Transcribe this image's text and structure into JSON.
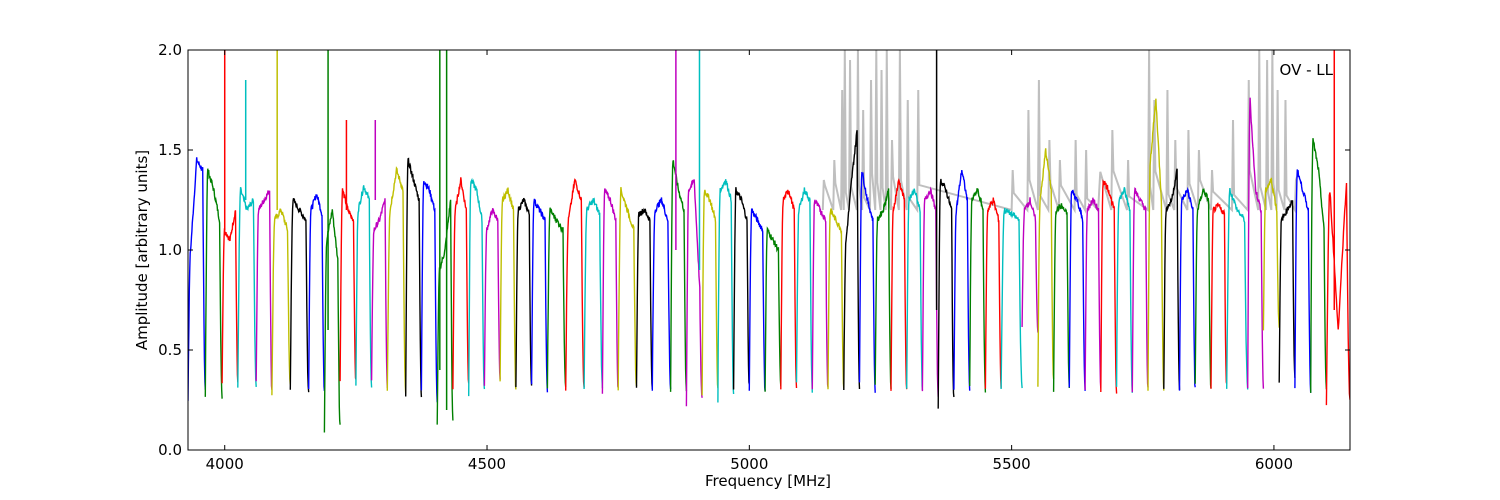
{
  "chart_data": {
    "type": "line",
    "annotation": "OV - LL",
    "xlabel": "Frequency [MHz]",
    "ylabel": "Amplitude [arbitrary units]",
    "xlim": [
      3930,
      6145
    ],
    "ylim": [
      0.0,
      2.0
    ],
    "xticks": [
      4000,
      4500,
      5000,
      5500,
      6000
    ],
    "xtick_labels": [
      "4000",
      "4500",
      "5000",
      "5500",
      "6000"
    ],
    "yticks": [
      0.0,
      0.5,
      1.0,
      1.5,
      2.0
    ],
    "ytick_labels": [
      "0.0",
      "0.5",
      "1.0",
      "1.5",
      "2.0"
    ],
    "grid": false,
    "legend": "none",
    "background_series": {
      "name": "",
      "color": "#bfbfbf",
      "x": [
        5140,
        5160,
        5175,
        5180,
        5190,
        5205,
        5215,
        5230,
        5240,
        5250,
        5260,
        5270,
        5285,
        5300,
        5320,
        5500,
        5530,
        5550,
        5570,
        5590,
        5620,
        5640,
        5665,
        5690,
        5720,
        5760,
        5770,
        5795,
        5810,
        5835,
        5855,
        5880,
        5920,
        5950,
        5970,
        5985,
        5995,
        6005,
        6020,
        6040
      ],
      "y": [
        1.35,
        1.45,
        1.8,
        2.0,
        1.95,
        2.0,
        1.7,
        1.85,
        2.0,
        1.9,
        2.0,
        1.55,
        2.0,
        1.75,
        1.8,
        1.4,
        1.7,
        1.85,
        1.55,
        1.45,
        1.55,
        1.5,
        1.3,
        1.6,
        1.45,
        2.0,
        1.75,
        1.8,
        1.55,
        1.6,
        1.5,
        1.4,
        1.65,
        1.85,
        2.0,
        1.95,
        2.0,
        1.8,
        1.75,
        1.35
      ]
    },
    "palette": [
      "#0000ff",
      "#008000",
      "#ff0000",
      "#00bfbf",
      "#bf00bf",
      "#bfbf00",
      "#000000"
    ],
    "segments": [
      {
        "x0": 3930,
        "x1": 3963,
        "color": "#0000ff",
        "top": [
          0.25,
          1.0,
          1.45,
          1.4,
          0.3
        ]
      },
      {
        "x0": 3963,
        "x1": 3995,
        "color": "#008000",
        "top": [
          0.28,
          1.4,
          1.3,
          1.15,
          0.27
        ]
      },
      {
        "x0": 3995,
        "x1": 4025,
        "color": "#ff0000",
        "top": [
          0.34,
          1.1,
          1.05,
          1.2,
          0.35
        ]
      },
      {
        "x0": 4025,
        "x1": 4060,
        "color": "#00bfbf",
        "top": [
          0.3,
          1.3,
          1.2,
          1.25,
          0.33
        ]
      },
      {
        "x0": 4060,
        "x1": 4090,
        "color": "#bf00bf",
        "top": [
          0.33,
          1.2,
          1.25,
          1.3,
          0.3
        ]
      },
      {
        "x0": 4090,
        "x1": 4125,
        "color": "#bfbf00",
        "top": [
          0.28,
          1.15,
          1.2,
          1.1,
          0.32
        ]
      },
      {
        "x0": 4125,
        "x1": 4160,
        "color": "#000000",
        "top": [
          0.3,
          1.25,
          1.2,
          1.15,
          0.29
        ]
      },
      {
        "x0": 4160,
        "x1": 4190,
        "color": "#0000ff",
        "top": [
          0.32,
          1.2,
          1.28,
          1.18,
          0.3
        ]
      },
      {
        "x0": 4190,
        "x1": 4220,
        "color": "#008000",
        "top": [
          0.1,
          1.05,
          1.2,
          0.95,
          0.12
        ]
      },
      {
        "x0": 4220,
        "x1": 4250,
        "color": "#ff0000",
        "top": [
          0.35,
          1.3,
          1.2,
          1.15,
          0.34
        ]
      },
      {
        "x0": 4250,
        "x1": 4280,
        "color": "#00bfbf",
        "top": [
          0.33,
          1.2,
          1.32,
          1.25,
          0.31
        ]
      },
      {
        "x0": 4280,
        "x1": 4310,
        "color": "#bf00bf",
        "top": [
          0.34,
          1.1,
          1.15,
          1.25,
          0.32
        ]
      },
      {
        "x0": 4310,
        "x1": 4345,
        "color": "#bfbf00",
        "top": [
          0.3,
          1.2,
          1.4,
          1.3,
          0.28
        ]
      },
      {
        "x0": 4345,
        "x1": 4375,
        "color": "#000000",
        "top": [
          0.26,
          1.45,
          1.35,
          1.25,
          0.27
        ]
      },
      {
        "x0": 4375,
        "x1": 4405,
        "color": "#0000ff",
        "top": [
          0.3,
          1.35,
          1.3,
          1.2,
          0.25
        ]
      },
      {
        "x0": 4405,
        "x1": 4435,
        "color": "#008000",
        "top": [
          0.12,
          0.9,
          1.0,
          1.25,
          0.15
        ]
      },
      {
        "x0": 4435,
        "x1": 4465,
        "color": "#ff0000",
        "top": [
          0.3,
          1.2,
          1.35,
          1.2,
          0.33
        ]
      },
      {
        "x0": 4465,
        "x1": 4495,
        "color": "#00bfbf",
        "top": [
          0.28,
          1.35,
          1.3,
          1.15,
          0.3
        ]
      },
      {
        "x0": 4495,
        "x1": 4525,
        "color": "#bf00bf",
        "top": [
          0.32,
          1.1,
          1.2,
          1.15,
          0.35
        ]
      },
      {
        "x0": 4525,
        "x1": 4555,
        "color": "#bfbf00",
        "top": [
          0.33,
          1.25,
          1.3,
          1.2,
          0.3
        ]
      },
      {
        "x0": 4555,
        "x1": 4585,
        "color": "#000000",
        "top": [
          0.3,
          1.2,
          1.25,
          1.18,
          0.31
        ]
      },
      {
        "x0": 4585,
        "x1": 4615,
        "color": "#0000ff",
        "top": [
          0.32,
          1.25,
          1.2,
          1.15,
          0.3
        ]
      },
      {
        "x0": 4615,
        "x1": 4650,
        "color": "#008000",
        "top": [
          0.3,
          1.2,
          1.15,
          1.1,
          0.32
        ]
      },
      {
        "x0": 4650,
        "x1": 4685,
        "color": "#ff0000",
        "top": [
          0.31,
          1.15,
          1.35,
          1.25,
          0.3
        ]
      },
      {
        "x0": 4685,
        "x1": 4720,
        "color": "#00bfbf",
        "top": [
          0.3,
          1.2,
          1.25,
          1.18,
          0.32
        ]
      },
      {
        "x0": 4720,
        "x1": 4750,
        "color": "#bf00bf",
        "top": [
          0.29,
          1.3,
          1.25,
          1.15,
          0.3
        ]
      },
      {
        "x0": 4750,
        "x1": 4785,
        "color": "#bfbf00",
        "top": [
          0.3,
          1.3,
          1.2,
          1.1,
          0.31
        ]
      },
      {
        "x0": 4785,
        "x1": 4815,
        "color": "#000000",
        "top": [
          0.32,
          1.18,
          1.2,
          1.15,
          0.3
        ]
      },
      {
        "x0": 4815,
        "x1": 4850,
        "color": "#0000ff",
        "top": [
          0.3,
          1.2,
          1.25,
          1.15,
          0.31
        ]
      },
      {
        "x0": 4850,
        "x1": 4880,
        "color": "#008000",
        "top": [
          0.3,
          1.45,
          1.3,
          1.2,
          0.29
        ]
      },
      {
        "x0": 4880,
        "x1": 4910,
        "color": "#bf00bf",
        "top": [
          0.22,
          1.3,
          1.35,
          0.8,
          0.25
        ]
      },
      {
        "x0": 4910,
        "x1": 4940,
        "color": "#bfbf00",
        "top": [
          0.28,
          1.3,
          1.25,
          1.15,
          0.3
        ]
      },
      {
        "x0": 4940,
        "x1": 4970,
        "color": "#00bfbf",
        "top": [
          0.24,
          1.3,
          1.35,
          1.25,
          0.28
        ]
      },
      {
        "x0": 4970,
        "x1": 5000,
        "color": "#000000",
        "top": [
          0.3,
          1.3,
          1.25,
          1.15,
          0.32
        ]
      },
      {
        "x0": 5000,
        "x1": 5030,
        "color": "#0000ff",
        "top": [
          0.31,
          1.2,
          1.15,
          1.1,
          0.3
        ]
      },
      {
        "x0": 5030,
        "x1": 5060,
        "color": "#008000",
        "top": [
          0.3,
          1.1,
          1.05,
          1.0,
          0.32
        ]
      },
      {
        "x0": 5060,
        "x1": 5090,
        "color": "#ff0000",
        "top": [
          0.3,
          1.25,
          1.3,
          1.2,
          0.31
        ]
      },
      {
        "x0": 5090,
        "x1": 5120,
        "color": "#00bfbf",
        "top": [
          0.33,
          1.2,
          1.3,
          1.25,
          0.3
        ]
      },
      {
        "x0": 5120,
        "x1": 5150,
        "color": "#bf00bf",
        "top": [
          0.3,
          1.25,
          1.2,
          1.15,
          0.31
        ]
      },
      {
        "x0": 5150,
        "x1": 5180,
        "color": "#bfbf00",
        "top": [
          0.3,
          1.2,
          1.15,
          1.1,
          0.32
        ]
      },
      {
        "x0": 5180,
        "x1": 5210,
        "color": "#000000",
        "top": [
          0.3,
          1.05,
          1.35,
          1.6,
          0.32
        ]
      },
      {
        "x0": 5210,
        "x1": 5240,
        "color": "#0000ff",
        "top": [
          0.33,
          1.4,
          1.25,
          1.15,
          0.3
        ]
      },
      {
        "x0": 5240,
        "x1": 5270,
        "color": "#008000",
        "top": [
          0.32,
          1.15,
          1.2,
          1.3,
          0.3
        ]
      },
      {
        "x0": 5270,
        "x1": 5300,
        "color": "#ff0000",
        "top": [
          0.3,
          1.2,
          1.35,
          1.25,
          0.31
        ]
      },
      {
        "x0": 5300,
        "x1": 5330,
        "color": "#00bfbf",
        "top": [
          0.3,
          1.25,
          1.3,
          1.2,
          0.29
        ]
      },
      {
        "x0": 5330,
        "x1": 5360,
        "color": "#bf00bf",
        "top": [
          0.28,
          1.25,
          1.3,
          1.2,
          0.27
        ]
      },
      {
        "x0": 5360,
        "x1": 5390,
        "color": "#000000",
        "top": [
          0.21,
          1.35,
          1.3,
          1.2,
          0.25
        ]
      },
      {
        "x0": 5390,
        "x1": 5420,
        "color": "#0000ff",
        "top": [
          0.3,
          1.2,
          1.4,
          1.25,
          0.31
        ]
      },
      {
        "x0": 5420,
        "x1": 5450,
        "color": "#008000",
        "top": [
          0.32,
          1.25,
          1.3,
          1.2,
          0.3
        ]
      },
      {
        "x0": 5450,
        "x1": 5480,
        "color": "#ff0000",
        "top": [
          0.3,
          1.2,
          1.25,
          1.15,
          0.32
        ]
      },
      {
        "x0": 5480,
        "x1": 5520,
        "color": "#00bfbf",
        "top": [
          0.31,
          1.2,
          1.18,
          1.15,
          0.3
        ]
      },
      {
        "x0": 5520,
        "x1": 5550,
        "color": "#bf00bf",
        "top": [
          0.62,
          1.2,
          1.25,
          1.15,
          0.6
        ]
      },
      {
        "x0": 5550,
        "x1": 5580,
        "color": "#bfbf00",
        "top": [
          0.32,
          1.25,
          1.5,
          1.3,
          0.34
        ]
      },
      {
        "x0": 5580,
        "x1": 5610,
        "color": "#008000",
        "top": [
          0.3,
          1.2,
          1.22,
          1.18,
          0.32
        ]
      },
      {
        "x0": 5610,
        "x1": 5640,
        "color": "#0000ff",
        "top": [
          0.31,
          1.3,
          1.25,
          1.15,
          0.3
        ]
      },
      {
        "x0": 5640,
        "x1": 5670,
        "color": "#bf00bf",
        "top": [
          0.3,
          1.2,
          1.25,
          1.2,
          0.31
        ]
      },
      {
        "x0": 5670,
        "x1": 5700,
        "color": "#ff0000",
        "top": [
          0.3,
          1.35,
          1.3,
          1.2,
          0.29
        ]
      },
      {
        "x0": 5700,
        "x1": 5730,
        "color": "#00bfbf",
        "top": [
          0.32,
          1.25,
          1.3,
          1.2,
          0.3
        ]
      },
      {
        "x0": 5730,
        "x1": 5760,
        "color": "#bf00bf",
        "top": [
          0.3,
          1.3,
          1.25,
          1.2,
          0.31
        ]
      },
      {
        "x0": 5760,
        "x1": 5790,
        "color": "#bfbf00",
        "top": [
          0.3,
          1.45,
          1.75,
          1.25,
          0.31
        ]
      },
      {
        "x0": 5790,
        "x1": 5820,
        "color": "#000000",
        "top": [
          0.3,
          1.2,
          1.25,
          1.4,
          0.31
        ]
      },
      {
        "x0": 5820,
        "x1": 5850,
        "color": "#0000ff",
        "top": [
          0.3,
          1.25,
          1.3,
          1.2,
          0.31
        ]
      },
      {
        "x0": 5850,
        "x1": 5880,
        "color": "#008000",
        "top": [
          0.32,
          1.2,
          1.3,
          1.25,
          0.3
        ]
      },
      {
        "x0": 5880,
        "x1": 5910,
        "color": "#ff0000",
        "top": [
          0.3,
          1.2,
          1.22,
          1.18,
          0.32
        ]
      },
      {
        "x0": 5910,
        "x1": 5950,
        "color": "#00bfbf",
        "top": [
          0.31,
          1.3,
          1.2,
          1.15,
          0.3
        ]
      },
      {
        "x0": 5950,
        "x1": 5980,
        "color": "#bf00bf",
        "top": [
          0.3,
          1.75,
          1.3,
          1.2,
          0.31
        ]
      },
      {
        "x0": 5980,
        "x1": 6010,
        "color": "#bfbf00",
        "top": [
          0.6,
          1.3,
          1.35,
          1.2,
          0.62
        ]
      },
      {
        "x0": 6010,
        "x1": 6040,
        "color": "#000000",
        "top": [
          0.35,
          1.15,
          1.2,
          1.25,
          0.36
        ]
      },
      {
        "x0": 6040,
        "x1": 6070,
        "color": "#0000ff",
        "top": [
          0.32,
          1.4,
          1.3,
          1.2,
          0.3
        ]
      },
      {
        "x0": 6070,
        "x1": 6100,
        "color": "#008000",
        "top": [
          0.3,
          1.55,
          1.4,
          1.1,
          0.31
        ]
      },
      {
        "x0": 6100,
        "x1": 6145,
        "color": "#ff0000",
        "top": [
          0.22,
          1.3,
          0.6,
          1.35,
          0.25
        ]
      }
    ],
    "spikes": [
      {
        "x": 4000,
        "ymin": 1.1,
        "ymax": 2.0,
        "color": "#ff0000"
      },
      {
        "x": 4040,
        "ymin": 1.25,
        "ymax": 1.85,
        "color": "#00bfbf"
      },
      {
        "x": 4100,
        "ymin": 1.2,
        "ymax": 2.0,
        "color": "#bfbf00"
      },
      {
        "x": 4197,
        "ymin": 0.6,
        "ymax": 2.0,
        "color": "#008000"
      },
      {
        "x": 4232,
        "ymin": 1.2,
        "ymax": 1.65,
        "color": "#ff0000"
      },
      {
        "x": 4287,
        "ymin": 1.25,
        "ymax": 1.65,
        "color": "#bf00bf"
      },
      {
        "x": 4410,
        "ymin": 0.4,
        "ymax": 2.0,
        "color": "#008000"
      },
      {
        "x": 4423,
        "ymin": 0.2,
        "ymax": 2.0,
        "color": "#008000"
      },
      {
        "x": 4860,
        "ymin": 1.0,
        "ymax": 2.0,
        "color": "#bf00bf"
      },
      {
        "x": 4905,
        "ymin": 0.9,
        "ymax": 2.0,
        "color": "#00bfbf"
      },
      {
        "x": 5357,
        "ymin": 0.7,
        "ymax": 2.0,
        "color": "#000000"
      },
      {
        "x": 6115,
        "ymin": 0.7,
        "ymax": 2.0,
        "color": "#ff0000"
      }
    ]
  }
}
